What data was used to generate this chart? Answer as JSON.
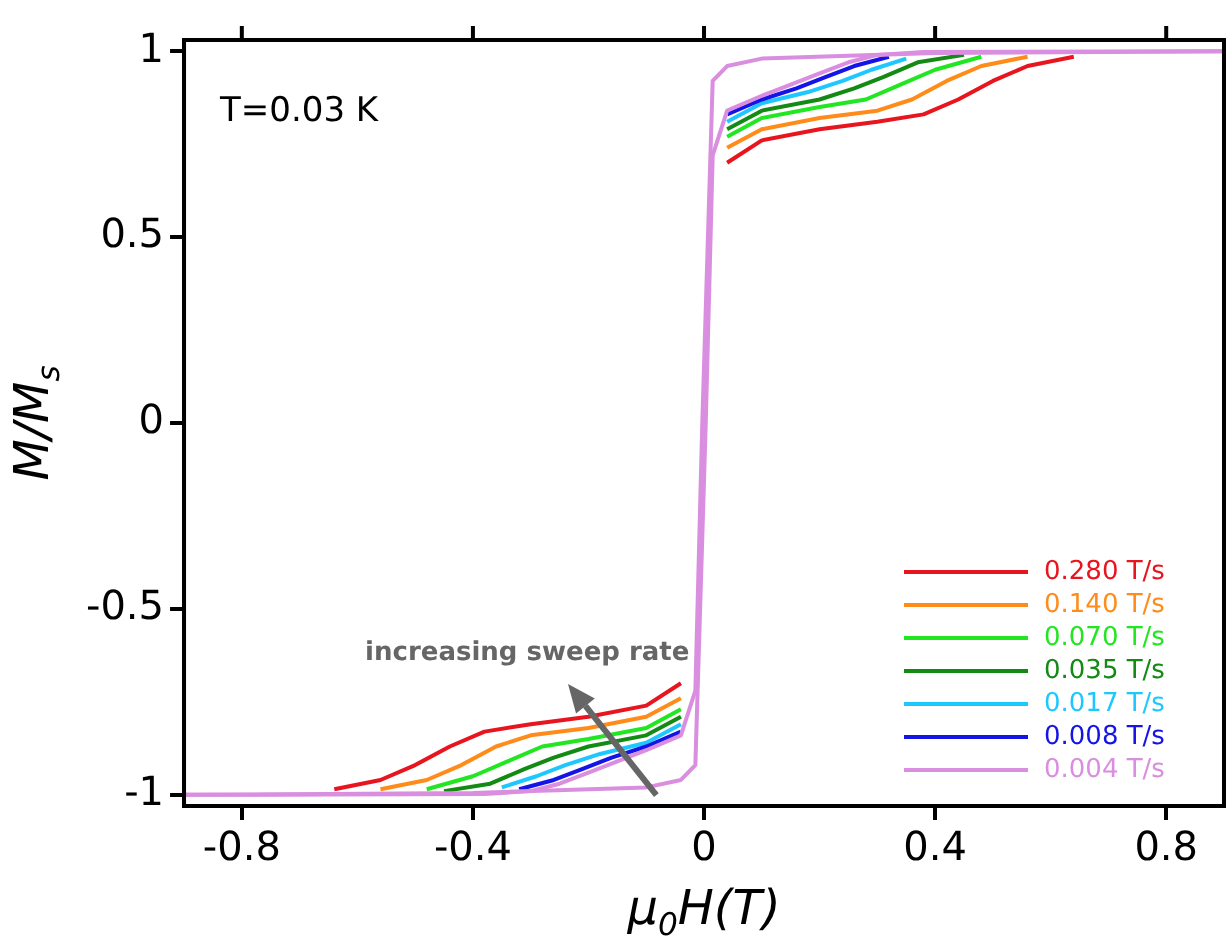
{
  "chart_data": {
    "type": "line",
    "xlabel": "μ$_{0}$H(T)",
    "ylabel": "M/M$_{s}$",
    "annotations": [
      "T=0.03 K",
      "increasing sweep rate"
    ],
    "xlim": [
      -0.9,
      0.9
    ],
    "xticks": [
      -0.8,
      -0.4,
      0,
      0.4,
      0.8
    ],
    "ylim": [
      -1.03,
      1.03
    ],
    "yticks": [
      -1,
      -0.5,
      0,
      0.5,
      1
    ],
    "grid": false,
    "legend": "bottom right",
    "marker": "none",
    "line_style": "solid",
    "series": [
      {
        "name": "0.280 T/s",
        "color": "#e8141e",
        "x": [
          -0.64,
          -0.56,
          -0.5,
          -0.44,
          -0.38,
          -0.3,
          -0.2,
          -0.1,
          -0.04,
          0,
          0.04,
          0.1,
          0.2,
          0.3,
          0.38,
          0.44,
          0.5,
          0.56,
          0.64
        ],
        "values": [
          -0.985,
          -0.96,
          -0.92,
          -0.87,
          -0.83,
          -0.81,
          -0.79,
          -0.76,
          -0.7,
          null,
          0.7,
          0.76,
          0.79,
          0.81,
          0.83,
          0.87,
          0.92,
          0.96,
          0.985
        ]
      },
      {
        "name": "0.140 T/s",
        "color": "#ff8c1a",
        "x": [
          -0.56,
          -0.48,
          -0.42,
          -0.36,
          -0.3,
          -0.2,
          -0.1,
          -0.04,
          0,
          0.04,
          0.1,
          0.2,
          0.3,
          0.36,
          0.42,
          0.48,
          0.56
        ],
        "values": [
          -0.985,
          -0.96,
          -0.92,
          -0.87,
          -0.84,
          -0.82,
          -0.79,
          -0.74,
          null,
          0.74,
          0.79,
          0.82,
          0.84,
          0.87,
          0.92,
          0.96,
          0.985
        ]
      },
      {
        "name": "0.070 T/s",
        "color": "#22e622",
        "x": [
          -0.48,
          -0.4,
          -0.34,
          -0.28,
          -0.2,
          -0.1,
          -0.04,
          0,
          0.04,
          0.1,
          0.2,
          0.28,
          0.34,
          0.4,
          0.48
        ],
        "values": [
          -0.985,
          -0.95,
          -0.91,
          -0.87,
          -0.85,
          -0.82,
          -0.77,
          null,
          0.77,
          0.82,
          0.85,
          0.87,
          0.91,
          0.95,
          0.985
        ]
      },
      {
        "name": "0.035 T/s",
        "color": "#138a13",
        "x": [
          -0.45,
          -0.37,
          -0.31,
          -0.26,
          -0.2,
          -0.1,
          -0.04,
          0,
          0.04,
          0.1,
          0.2,
          0.26,
          0.31,
          0.37,
          0.45
        ],
        "values": [
          -0.99,
          -0.97,
          -0.93,
          -0.9,
          -0.87,
          -0.84,
          -0.79,
          null,
          0.79,
          0.84,
          0.87,
          0.9,
          0.93,
          0.97,
          0.99
        ]
      },
      {
        "name": "0.017 T/s",
        "color": "#1ec8ff",
        "x": [
          -0.35,
          -0.29,
          -0.24,
          -0.18,
          -0.1,
          -0.04,
          0,
          0.04,
          0.1,
          0.18,
          0.24,
          0.29,
          0.35
        ],
        "values": [
          -0.98,
          -0.95,
          -0.92,
          -0.89,
          -0.86,
          -0.81,
          null,
          0.81,
          0.86,
          0.89,
          0.92,
          0.95,
          0.98
        ]
      },
      {
        "name": "0.008 T/s",
        "color": "#1414e6",
        "x": [
          -0.32,
          -0.26,
          -0.21,
          -0.16,
          -0.1,
          -0.04,
          0,
          0.04,
          0.1,
          0.16,
          0.21,
          0.26,
          0.32
        ],
        "values": [
          -0.985,
          -0.96,
          -0.93,
          -0.9,
          -0.87,
          -0.83,
          null,
          0.83,
          0.87,
          0.9,
          0.93,
          0.96,
          0.985
        ]
      },
      {
        "name": "0.004 T/s",
        "color": "#d98ee0",
        "x": [
          -0.9,
          -0.4,
          -0.1,
          -0.04,
          -0.015,
          0.003,
          0.015,
          0.04,
          0.1,
          0.15,
          0.2,
          0.25,
          0.3,
          0.38,
          0.9
        ],
        "values": [
          -1,
          -0.995,
          -0.98,
          -0.96,
          -0.92,
          0,
          0.72,
          0.84,
          0.88,
          0.91,
          0.94,
          0.97,
          0.99,
          0.998,
          1
        ]
      },
      {
        "color": "#d98ee0",
        "x": [
          -0.9,
          -0.38,
          -0.3,
          -0.25,
          -0.2,
          -0.15,
          -0.1,
          -0.04,
          -0.015,
          -0.003,
          0.015,
          0.04,
          0.1,
          0.4,
          0.9
        ],
        "values": [
          -1,
          -0.998,
          -0.99,
          -0.97,
          -0.94,
          -0.91,
          -0.88,
          -0.84,
          -0.72,
          0,
          0.92,
          0.96,
          0.98,
          0.995,
          1
        ]
      }
    ]
  }
}
